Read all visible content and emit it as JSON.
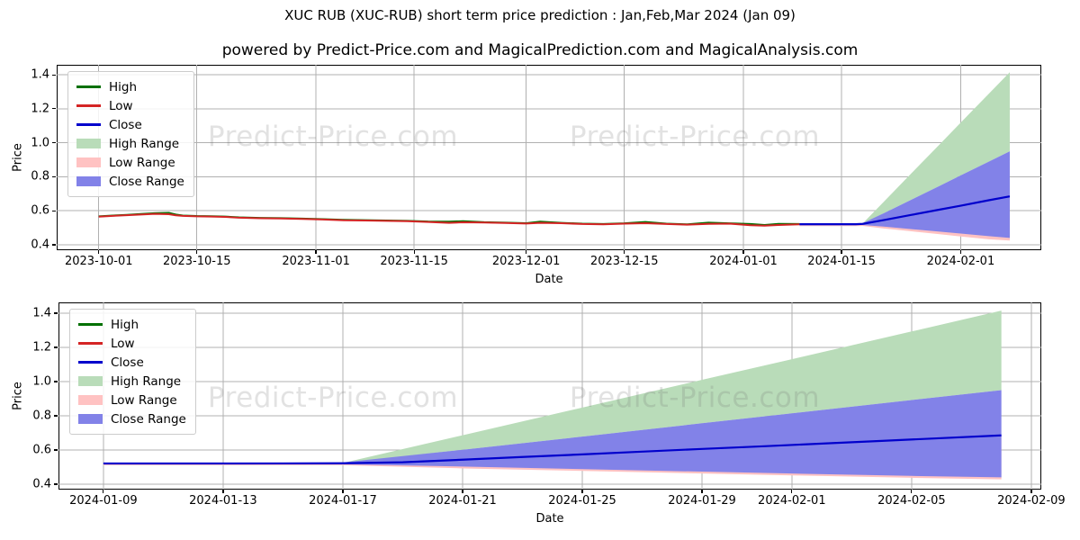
{
  "title": "XUC RUB (XUC-RUB) short term price prediction : Jan,Feb,Mar 2024 (Jan 09)",
  "subtitle": "powered by Predict-Price.com and MagicalPrediction.com and MagicalAnalysis.com",
  "watermark_text": "Predict-Price.com",
  "colors": {
    "high_line": "#007000",
    "low_line": "#d42424",
    "close_line": "#0000cc",
    "high_range": "#b9dcb9",
    "low_range": "#ffc2c2",
    "close_range": "#8282e8",
    "grid": "#b0b0b0",
    "watermark": "rgba(110,110,110,0.20)"
  },
  "legend": {
    "items": [
      {
        "label": "High",
        "swatch": "line",
        "color": "high_line"
      },
      {
        "label": "Low",
        "swatch": "line",
        "color": "low_line"
      },
      {
        "label": "Close",
        "swatch": "line",
        "color": "close_line"
      },
      {
        "label": "High Range",
        "swatch": "patch",
        "color": "high_range"
      },
      {
        "label": "Low Range",
        "swatch": "patch",
        "color": "low_range"
      },
      {
        "label": "Close Range",
        "swatch": "patch",
        "color": "close_range"
      }
    ]
  },
  "chart_data": [
    {
      "type": "line",
      "name": "historical-and-prediction",
      "xlabel": "Date",
      "ylabel": "Price",
      "grid": true,
      "legend_position": "upper-left",
      "xlim": [
        "2023-09-25T00:00:00Z",
        "2024-02-12T12:00:00Z"
      ],
      "ylim": [
        0.368,
        1.459
      ],
      "yticks": [
        0.4,
        0.6,
        0.8,
        1.0,
        1.2,
        1.4
      ],
      "ytick_labels": [
        "0.4",
        "0.6",
        "0.8",
        "1.0",
        "1.2",
        "1.4"
      ],
      "xticks": [
        "2023-10-01",
        "2023-10-15",
        "2023-11-01",
        "2023-11-15",
        "2023-12-01",
        "2023-12-15",
        "2024-01-01",
        "2024-01-15",
        "2024-02-01"
      ],
      "bands": [
        {
          "name": "High Range",
          "color": "high_range",
          "x": [
            "2024-01-18",
            "2024-01-21",
            "2024-01-25",
            "2024-01-29",
            "2024-02-01",
            "2024-02-05",
            "2024-02-08"
          ],
          "top": [
            0.525,
            0.652,
            0.822,
            0.991,
            1.119,
            1.288,
            1.415
          ],
          "bottom": [
            0.523,
            0.585,
            0.666,
            0.747,
            0.808,
            0.889,
            0.95
          ]
        },
        {
          "name": "Low Range",
          "color": "low_range",
          "x": [
            "2024-01-09",
            "2024-01-13",
            "2024-01-17",
            "2024-01-18",
            "2024-01-21",
            "2024-01-25",
            "2024-01-29",
            "2024-02-01",
            "2024-02-05",
            "2024-02-08"
          ],
          "top": [
            0.521,
            0.521,
            0.521,
            0.523,
            0.545,
            0.576,
            0.607,
            0.63,
            0.662,
            0.685
          ],
          "bottom": [
            0.51,
            0.51,
            0.51,
            0.511,
            0.496,
            0.479,
            0.462,
            0.449,
            0.432,
            0.425
          ]
        },
        {
          "name": "Close Range",
          "color": "close_range",
          "x": [
            "2024-01-09",
            "2024-01-13",
            "2024-01-17",
            "2024-01-18",
            "2024-01-21",
            "2024-01-25",
            "2024-01-29",
            "2024-02-01",
            "2024-02-05",
            "2024-02-08"
          ],
          "top": [
            0.526,
            0.526,
            0.526,
            0.527,
            0.585,
            0.666,
            0.747,
            0.808,
            0.889,
            0.95
          ],
          "bottom": [
            0.515,
            0.515,
            0.515,
            0.516,
            0.507,
            0.492,
            0.477,
            0.466,
            0.451,
            0.44
          ]
        }
      ],
      "series": [
        {
          "name": "High",
          "color": "high_line",
          "width": 2,
          "x": [
            "2023-10-01",
            "2023-10-03",
            "2023-10-05",
            "2023-10-07",
            "2023-10-09",
            "2023-10-11",
            "2023-10-12",
            "2023-10-13",
            "2023-10-15",
            "2023-10-17",
            "2023-10-19",
            "2023-10-21",
            "2023-10-24",
            "2023-10-27",
            "2023-10-30",
            "2023-11-02",
            "2023-11-05",
            "2023-11-08",
            "2023-11-11",
            "2023-11-14",
            "2023-11-17",
            "2023-11-20",
            "2023-11-22",
            "2023-11-25",
            "2023-11-28",
            "2023-12-01",
            "2023-12-03",
            "2023-12-06",
            "2023-12-09",
            "2023-12-12",
            "2023-12-15",
            "2023-12-18",
            "2023-12-21",
            "2023-12-24",
            "2023-12-27",
            "2023-12-30",
            "2024-01-02",
            "2024-01-04",
            "2024-01-06",
            "2024-01-09"
          ],
          "y": [
            0.567,
            0.572,
            0.576,
            0.581,
            0.586,
            0.588,
            0.578,
            0.572,
            0.569,
            0.568,
            0.566,
            0.561,
            0.558,
            0.557,
            0.554,
            0.551,
            0.547,
            0.545,
            0.543,
            0.541,
            0.537,
            0.536,
            0.539,
            0.533,
            0.53,
            0.527,
            0.536,
            0.529,
            0.524,
            0.522,
            0.526,
            0.534,
            0.524,
            0.52,
            0.53,
            0.526,
            0.522,
            0.516,
            0.523,
            0.522
          ]
        },
        {
          "name": "Low",
          "color": "low_line",
          "width": 2,
          "x": [
            "2023-10-01",
            "2023-10-03",
            "2023-10-05",
            "2023-10-07",
            "2023-10-09",
            "2023-10-11",
            "2023-10-12",
            "2023-10-13",
            "2023-10-15",
            "2023-10-17",
            "2023-10-19",
            "2023-10-21",
            "2023-10-24",
            "2023-10-27",
            "2023-10-30",
            "2023-11-02",
            "2023-11-05",
            "2023-11-08",
            "2023-11-11",
            "2023-11-14",
            "2023-11-17",
            "2023-11-20",
            "2023-11-22",
            "2023-11-25",
            "2023-11-28",
            "2023-12-01",
            "2023-12-03",
            "2023-12-06",
            "2023-12-09",
            "2023-12-12",
            "2023-12-15",
            "2023-12-18",
            "2023-12-21",
            "2023-12-24",
            "2023-12-27",
            "2023-12-30",
            "2024-01-02",
            "2024-01-04",
            "2024-01-06",
            "2024-01-09"
          ],
          "y": [
            0.565,
            0.57,
            0.574,
            0.578,
            0.582,
            0.58,
            0.573,
            0.57,
            0.567,
            0.566,
            0.564,
            0.559,
            0.556,
            0.555,
            0.552,
            0.549,
            0.544,
            0.543,
            0.541,
            0.539,
            0.534,
            0.529,
            0.532,
            0.531,
            0.528,
            0.525,
            0.529,
            0.527,
            0.522,
            0.52,
            0.524,
            0.527,
            0.522,
            0.518,
            0.523,
            0.524,
            0.515,
            0.512,
            0.516,
            0.52
          ]
        },
        {
          "name": "Close",
          "color": "close_line",
          "width": 2.2,
          "x": [
            "2024-01-09",
            "2024-01-13",
            "2024-01-17",
            "2024-01-18",
            "2024-01-21",
            "2024-01-25",
            "2024-01-29",
            "2024-02-01",
            "2024-02-05",
            "2024-02-08"
          ],
          "y": [
            0.521,
            0.521,
            0.521,
            0.523,
            0.545,
            0.576,
            0.607,
            0.63,
            0.662,
            0.685
          ]
        }
      ]
    },
    {
      "type": "line",
      "name": "prediction-zoom",
      "xlabel": "Date",
      "ylabel": "Price",
      "grid": true,
      "legend_position": "upper-left",
      "xlim": [
        "2024-01-07T12:00:00Z",
        "2024-02-09T08:00:00Z"
      ],
      "ylim": [
        0.368,
        1.463
      ],
      "yticks": [
        0.4,
        0.6,
        0.8,
        1.0,
        1.2,
        1.4
      ],
      "ytick_labels": [
        "0.4",
        "0.6",
        "0.8",
        "1.0",
        "1.2",
        "1.4"
      ],
      "xticks": [
        "2024-01-09",
        "2024-01-13",
        "2024-01-17",
        "2024-01-21",
        "2024-01-25",
        "2024-01-29",
        "2024-02-01",
        "2024-02-05",
        "2024-02-09"
      ],
      "bands": [
        {
          "name": "High Range",
          "color": "high_range",
          "x": [
            "2024-01-17",
            "2024-01-21",
            "2024-01-25",
            "2024-01-29",
            "2024-02-01",
            "2024-02-05",
            "2024-02-08"
          ],
          "top": [
            0.524,
            0.686,
            0.848,
            1.01,
            1.131,
            1.293,
            1.415
          ],
          "bottom": [
            0.523,
            0.601,
            0.678,
            0.756,
            0.814,
            0.892,
            0.95
          ]
        },
        {
          "name": "Low Range",
          "color": "low_range",
          "x": [
            "2024-01-09",
            "2024-01-13",
            "2024-01-17",
            "2024-01-21",
            "2024-01-25",
            "2024-01-29",
            "2024-02-01",
            "2024-02-05",
            "2024-02-08"
          ],
          "top": [
            0.521,
            0.521,
            0.522,
            0.543,
            0.574,
            0.606,
            0.63,
            0.662,
            0.685
          ],
          "bottom": [
            0.51,
            0.51,
            0.511,
            0.492,
            0.477,
            0.462,
            0.451,
            0.437,
            0.428
          ]
        },
        {
          "name": "Close Range",
          "color": "close_range",
          "x": [
            "2024-01-09",
            "2024-01-13",
            "2024-01-17",
            "2024-01-21",
            "2024-01-25",
            "2024-01-29",
            "2024-02-01",
            "2024-02-05",
            "2024-02-08"
          ],
          "top": [
            0.526,
            0.526,
            0.527,
            0.601,
            0.678,
            0.756,
            0.814,
            0.892,
            0.95
          ],
          "bottom": [
            0.515,
            0.515,
            0.516,
            0.503,
            0.488,
            0.473,
            0.462,
            0.448,
            0.44
          ]
        }
      ],
      "series": [
        {
          "name": "Close",
          "color": "close_line",
          "width": 2.2,
          "x": [
            "2024-01-09",
            "2024-01-11",
            "2024-01-13",
            "2024-01-15",
            "2024-01-17",
            "2024-01-19",
            "2024-01-21",
            "2024-01-23",
            "2024-01-25",
            "2024-01-27",
            "2024-01-29",
            "2024-01-31",
            "2024-02-02",
            "2024-02-04",
            "2024-02-06",
            "2024-02-08"
          ],
          "y": [
            0.521,
            0.521,
            0.521,
            0.521,
            0.522,
            0.528,
            0.543,
            0.559,
            0.574,
            0.59,
            0.606,
            0.621,
            0.637,
            0.653,
            0.669,
            0.685
          ]
        }
      ]
    }
  ]
}
